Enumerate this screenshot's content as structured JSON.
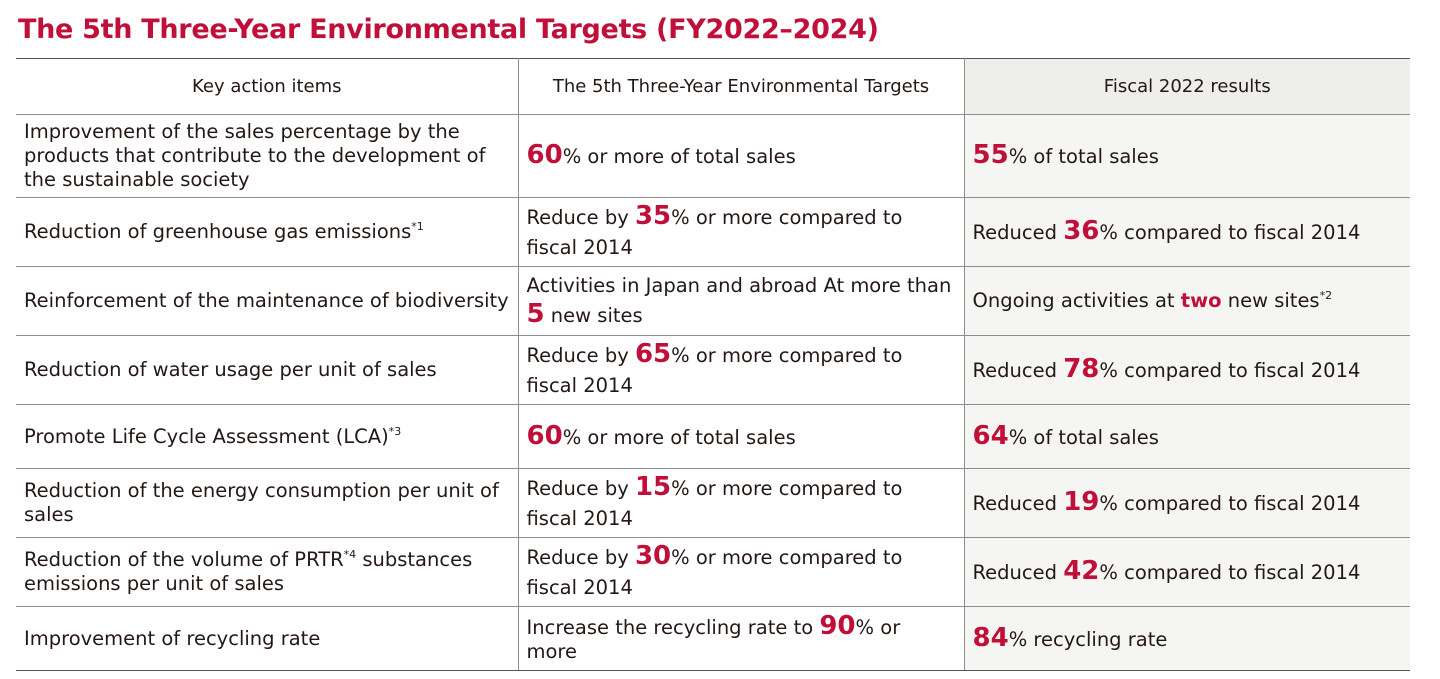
{
  "title": "The 5th Three-Year Environmental Targets (FY2022–2024)",
  "headers": [
    "Key action items",
    "The 5th Three-Year Environmental Targets",
    "Fiscal 2022 results"
  ],
  "rows": [
    {
      "item": "Improvement of the sales percentage by the products that contribute to the development of the sustainable society",
      "target": {
        "pre": "",
        "num": "60",
        "post": "% or more of total sales"
      },
      "result": {
        "pre": "",
        "num": "55",
        "post": "% of total sales"
      }
    },
    {
      "item": "Reduction of greenhouse gas emissions",
      "item_note": "*1",
      "target": {
        "pre": "Reduce by ",
        "num": "35",
        "post": "% or more compared to fiscal 2014"
      },
      "result": {
        "pre": "Reduced ",
        "num": "36",
        "post": "% compared to fiscal 2014"
      }
    },
    {
      "item": "Reinforcement of the maintenance of biodiversity",
      "target": {
        "pre": "Activities in Japan and abroad At more than ",
        "num": "5",
        "post": " new sites"
      },
      "result": {
        "pre": "Ongoing activities at ",
        "num": "two",
        "post": " new sites",
        "note": "*2"
      }
    },
    {
      "item": "Reduction of water usage per unit of sales",
      "target": {
        "pre": "Reduce by ",
        "num": "65",
        "post": "% or more compared to fiscal 2014"
      },
      "result": {
        "pre": "Reduced ",
        "num": "78",
        "post": "% compared to fiscal 2014"
      }
    },
    {
      "item": "Promote Life Cycle Assessment (LCA)",
      "item_note": "*3",
      "target": {
        "pre": "",
        "num": "60",
        "post": "% or more of total sales"
      },
      "result": {
        "pre": "",
        "num": "64",
        "post": "% of total sales"
      }
    },
    {
      "item": "Reduction of the energy consumption per unit of sales",
      "target": {
        "pre": "Reduce by ",
        "num": "15",
        "post": "% or more compared to fiscal 2014"
      },
      "result": {
        "pre": "Reduced ",
        "num": "19",
        "post": "% compared to fiscal 2014"
      }
    },
    {
      "item_pre": "Reduction of the volume of PRTR",
      "item_note": "*4",
      "item_post": " substances emissions per unit of sales",
      "target": {
        "pre": "Reduce by ",
        "num": "30",
        "post": "% or more compared to fiscal 2014"
      },
      "result": {
        "pre": "Reduced ",
        "num": "42",
        "post": "% compared to fiscal 2014"
      }
    },
    {
      "item": "Improvement of recycling rate",
      "target": {
        "pre": "Increase the recycling rate to ",
        "num": "90",
        "post": "% or more"
      },
      "result": {
        "pre": "",
        "num": "84",
        "post": "% recycling rate"
      }
    }
  ],
  "colors": {
    "accent": "#c0103a",
    "header_result_bg": "#eeeeea",
    "result_bg": "#f5f5f3",
    "rule": "#8e8e8e"
  }
}
